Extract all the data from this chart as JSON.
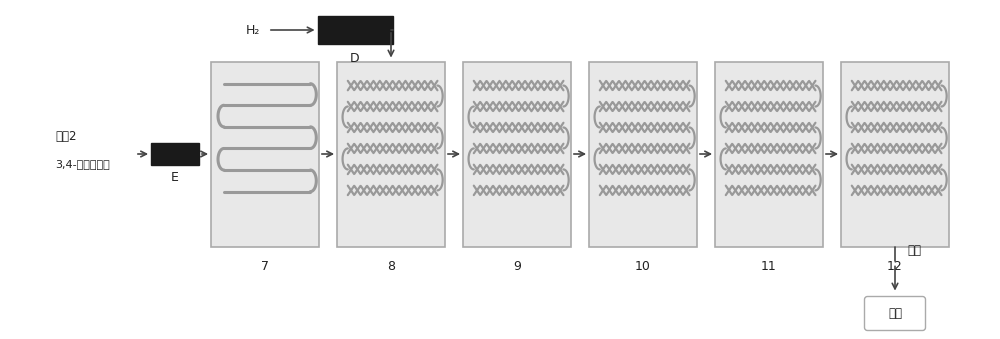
{
  "bg_color": "#ffffff",
  "reactor_bg": "#e8e8e8",
  "reactor_border": "#aaaaaa",
  "channel_color": "#999999",
  "black_color": "#1a1a1a",
  "arrow_color": "#444444",
  "text_color": "#222222",
  "label_D": "D",
  "label_E": "E",
  "label_H2": "H₂",
  "label_material1": "物料2",
  "label_material2": "3,4-二氯硝基苯",
  "label_process": "处理",
  "label_product": "产品",
  "reactor_labels": [
    "7",
    "8",
    "9",
    "10",
    "11",
    "12"
  ],
  "fig_w": 10.0,
  "fig_h": 3.39,
  "dpi": 100
}
